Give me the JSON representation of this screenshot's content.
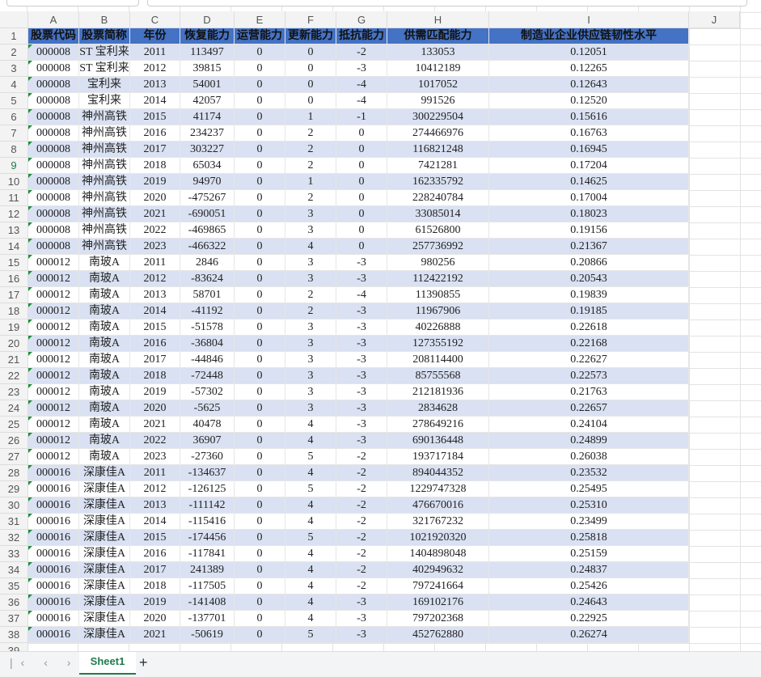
{
  "column_headers": [
    "A",
    "B",
    "C",
    "D",
    "E",
    "F",
    "G",
    "H",
    "I",
    "J"
  ],
  "row_numbers": [
    1,
    2,
    3,
    4,
    5,
    6,
    7,
    8,
    9,
    10,
    11,
    12,
    13,
    14,
    15,
    16,
    17,
    18,
    19,
    20,
    21,
    22,
    23,
    24,
    25,
    26,
    27,
    28,
    29,
    30,
    31,
    32,
    33,
    34,
    35,
    36,
    37,
    38,
    39
  ],
  "table": {
    "header": [
      "股票代码",
      "股票简称",
      "年份",
      "恢复能力",
      "运营能力",
      "更新能力",
      "抵抗能力",
      "供需匹配能力",
      "制造业企业供应链韧性水平"
    ],
    "rows": [
      [
        "000008",
        "ST 宝利来",
        "2011",
        "113497",
        "0",
        "0",
        "-2",
        "133053",
        "0.12051"
      ],
      [
        "000008",
        "ST 宝利来",
        "2012",
        "39815",
        "0",
        "0",
        "-3",
        "10412189",
        "0.12265"
      ],
      [
        "000008",
        "宝利来",
        "2013",
        "54001",
        "0",
        "0",
        "-4",
        "1017052",
        "0.12643"
      ],
      [
        "000008",
        "宝利来",
        "2014",
        "42057",
        "0",
        "0",
        "-4",
        "991526",
        "0.12520"
      ],
      [
        "000008",
        "神州高铁",
        "2015",
        "41174",
        "0",
        "1",
        "-1",
        "300229504",
        "0.15616"
      ],
      [
        "000008",
        "神州高铁",
        "2016",
        "234237",
        "0",
        "2",
        "0",
        "274466976",
        "0.16763"
      ],
      [
        "000008",
        "神州高铁",
        "2017",
        "303227",
        "0",
        "2",
        "0",
        "116821248",
        "0.16945"
      ],
      [
        "000008",
        "神州高铁",
        "2018",
        "65034",
        "0",
        "2",
        "0",
        "7421281",
        "0.17204"
      ],
      [
        "000008",
        "神州高铁",
        "2019",
        "94970",
        "0",
        "1",
        "0",
        "162335792",
        "0.14625"
      ],
      [
        "000008",
        "神州高铁",
        "2020",
        "-475267",
        "0",
        "2",
        "0",
        "228240784",
        "0.17004"
      ],
      [
        "000008",
        "神州高铁",
        "2021",
        "-690051",
        "0",
        "3",
        "0",
        "33085014",
        "0.18023"
      ],
      [
        "000008",
        "神州高铁",
        "2022",
        "-469865",
        "0",
        "3",
        "0",
        "61526800",
        "0.19156"
      ],
      [
        "000008",
        "神州高铁",
        "2023",
        "-466322",
        "0",
        "4",
        "0",
        "257736992",
        "0.21367"
      ],
      [
        "000012",
        "南玻A",
        "2011",
        "2846",
        "0",
        "3",
        "-3",
        "980256",
        "0.20866"
      ],
      [
        "000012",
        "南玻A",
        "2012",
        "-83624",
        "0",
        "3",
        "-3",
        "112422192",
        "0.20543"
      ],
      [
        "000012",
        "南玻A",
        "2013",
        "58701",
        "0",
        "2",
        "-4",
        "11390855",
        "0.19839"
      ],
      [
        "000012",
        "南玻A",
        "2014",
        "-41192",
        "0",
        "2",
        "-3",
        "11967906",
        "0.19185"
      ],
      [
        "000012",
        "南玻A",
        "2015",
        "-51578",
        "0",
        "3",
        "-3",
        "40226888",
        "0.22618"
      ],
      [
        "000012",
        "南玻A",
        "2016",
        "-36804",
        "0",
        "3",
        "-3",
        "127355192",
        "0.22168"
      ],
      [
        "000012",
        "南玻A",
        "2017",
        "-44846",
        "0",
        "3",
        "-3",
        "208114400",
        "0.22627"
      ],
      [
        "000012",
        "南玻A",
        "2018",
        "-72448",
        "0",
        "3",
        "-3",
        "85755568",
        "0.22573"
      ],
      [
        "000012",
        "南玻A",
        "2019",
        "-57302",
        "0",
        "3",
        "-3",
        "212181936",
        "0.21763"
      ],
      [
        "000012",
        "南玻A",
        "2020",
        "-5625",
        "0",
        "3",
        "-3",
        "2834628",
        "0.22657"
      ],
      [
        "000012",
        "南玻A",
        "2021",
        "40478",
        "0",
        "4",
        "-3",
        "278649216",
        "0.24104"
      ],
      [
        "000012",
        "南玻A",
        "2022",
        "36907",
        "0",
        "4",
        "-3",
        "690136448",
        "0.24899"
      ],
      [
        "000012",
        "南玻A",
        "2023",
        "-27360",
        "0",
        "5",
        "-2",
        "193717184",
        "0.26038"
      ],
      [
        "000016",
        "深康佳A",
        "2011",
        "-134637",
        "0",
        "4",
        "-2",
        "894044352",
        "0.23532"
      ],
      [
        "000016",
        "深康佳A",
        "2012",
        "-126125",
        "0",
        "5",
        "-2",
        "1229747328",
        "0.25495"
      ],
      [
        "000016",
        "深康佳A",
        "2013",
        "-111142",
        "0",
        "4",
        "-2",
        "476670016",
        "0.25310"
      ],
      [
        "000016",
        "深康佳A",
        "2014",
        "-115416",
        "0",
        "4",
        "-2",
        "321767232",
        "0.23499"
      ],
      [
        "000016",
        "深康佳A",
        "2015",
        "-174456",
        "0",
        "5",
        "-2",
        "1021920320",
        "0.25818"
      ],
      [
        "000016",
        "深康佳A",
        "2016",
        "-117841",
        "0",
        "4",
        "-2",
        "1404898048",
        "0.25159"
      ],
      [
        "000016",
        "深康佳A",
        "2017",
        "241389",
        "0",
        "4",
        "-2",
        "402949632",
        "0.24837"
      ],
      [
        "000016",
        "深康佳A",
        "2018",
        "-117505",
        "0",
        "4",
        "-2",
        "797241664",
        "0.25426"
      ],
      [
        "000016",
        "深康佳A",
        "2019",
        "-141408",
        "0",
        "4",
        "-3",
        "169102176",
        "0.24643"
      ],
      [
        "000016",
        "深康佳A",
        "2020",
        "-137701",
        "0",
        "4",
        "-3",
        "797202368",
        "0.22925"
      ],
      [
        "000016",
        "深康佳A",
        "2021",
        "-50619",
        "0",
        "5",
        "-3",
        "452762880",
        "0.26274"
      ]
    ]
  },
  "sheet_tabs": [
    "Sheet1"
  ]
}
